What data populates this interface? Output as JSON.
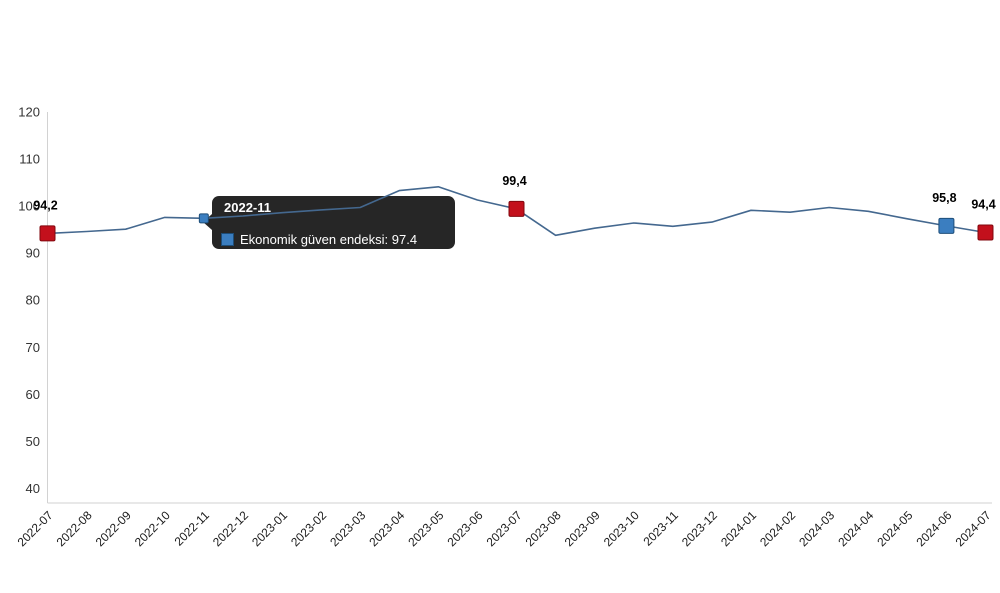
{
  "chart_data": {
    "type": "line",
    "title": "",
    "xlabel": "",
    "ylabel": "",
    "x": [
      "2022-07",
      "2022-08",
      "2022-09",
      "2022-10",
      "2022-11",
      "2022-12",
      "2023-01",
      "2023-02",
      "2023-03",
      "2023-04",
      "2023-05",
      "2023-06",
      "2023-07",
      "2023-08",
      "2023-09",
      "2023-10",
      "2023-11",
      "2023-12",
      "2024-01",
      "2024-02",
      "2024-03",
      "2024-04",
      "2024-05",
      "2024-06",
      "2024-07"
    ],
    "series": [
      {
        "name": "Ekonomik güven endeksi",
        "values": [
          94.2,
          94.6,
          95.1,
          97.6,
          97.4,
          97.9,
          98.6,
          99.2,
          99.7,
          103.3,
          104.1,
          101.3,
          99.4,
          93.8,
          95.3,
          96.4,
          95.7,
          96.6,
          99.1,
          98.7,
          99.7,
          98.9,
          97.3,
          95.8,
          94.4
        ]
      }
    ],
    "yticks": [
      120,
      110,
      100,
      90,
      80,
      70,
      60,
      50,
      40
    ],
    "ylim": [
      36.9,
      120
    ],
    "grid": false,
    "legend": "none",
    "marked_points": [
      {
        "x": "2022-07",
        "value_label": "94,2",
        "marker": "red"
      },
      {
        "x": "2022-11",
        "value_label": "",
        "marker": "blue-small"
      },
      {
        "x": "2023-07",
        "value_label": "99,4",
        "marker": "red"
      },
      {
        "x": "2024-06",
        "value_label": "95,8",
        "marker": "blue"
      },
      {
        "x": "2024-07",
        "value_label": "94,4",
        "marker": "red"
      }
    ],
    "colors": {
      "line": "#44688f",
      "red_marker_fill": "#c3101c",
      "red_marker_border": "#82070e",
      "blue_marker_fill": "#3b7ec0",
      "blue_marker_border": "#1e4e79",
      "axis_line": "#d2d2d2",
      "tick_label": "#333333",
      "data_label": "#000000"
    }
  },
  "tooltip": {
    "header": "2022-11",
    "series_name": "Ekonomik güven endeksi",
    "value": "97.4",
    "text": "Ekonomik güven endeksi: 97.4",
    "swatch_color": "#3b7ec0",
    "background": "#141414"
  }
}
